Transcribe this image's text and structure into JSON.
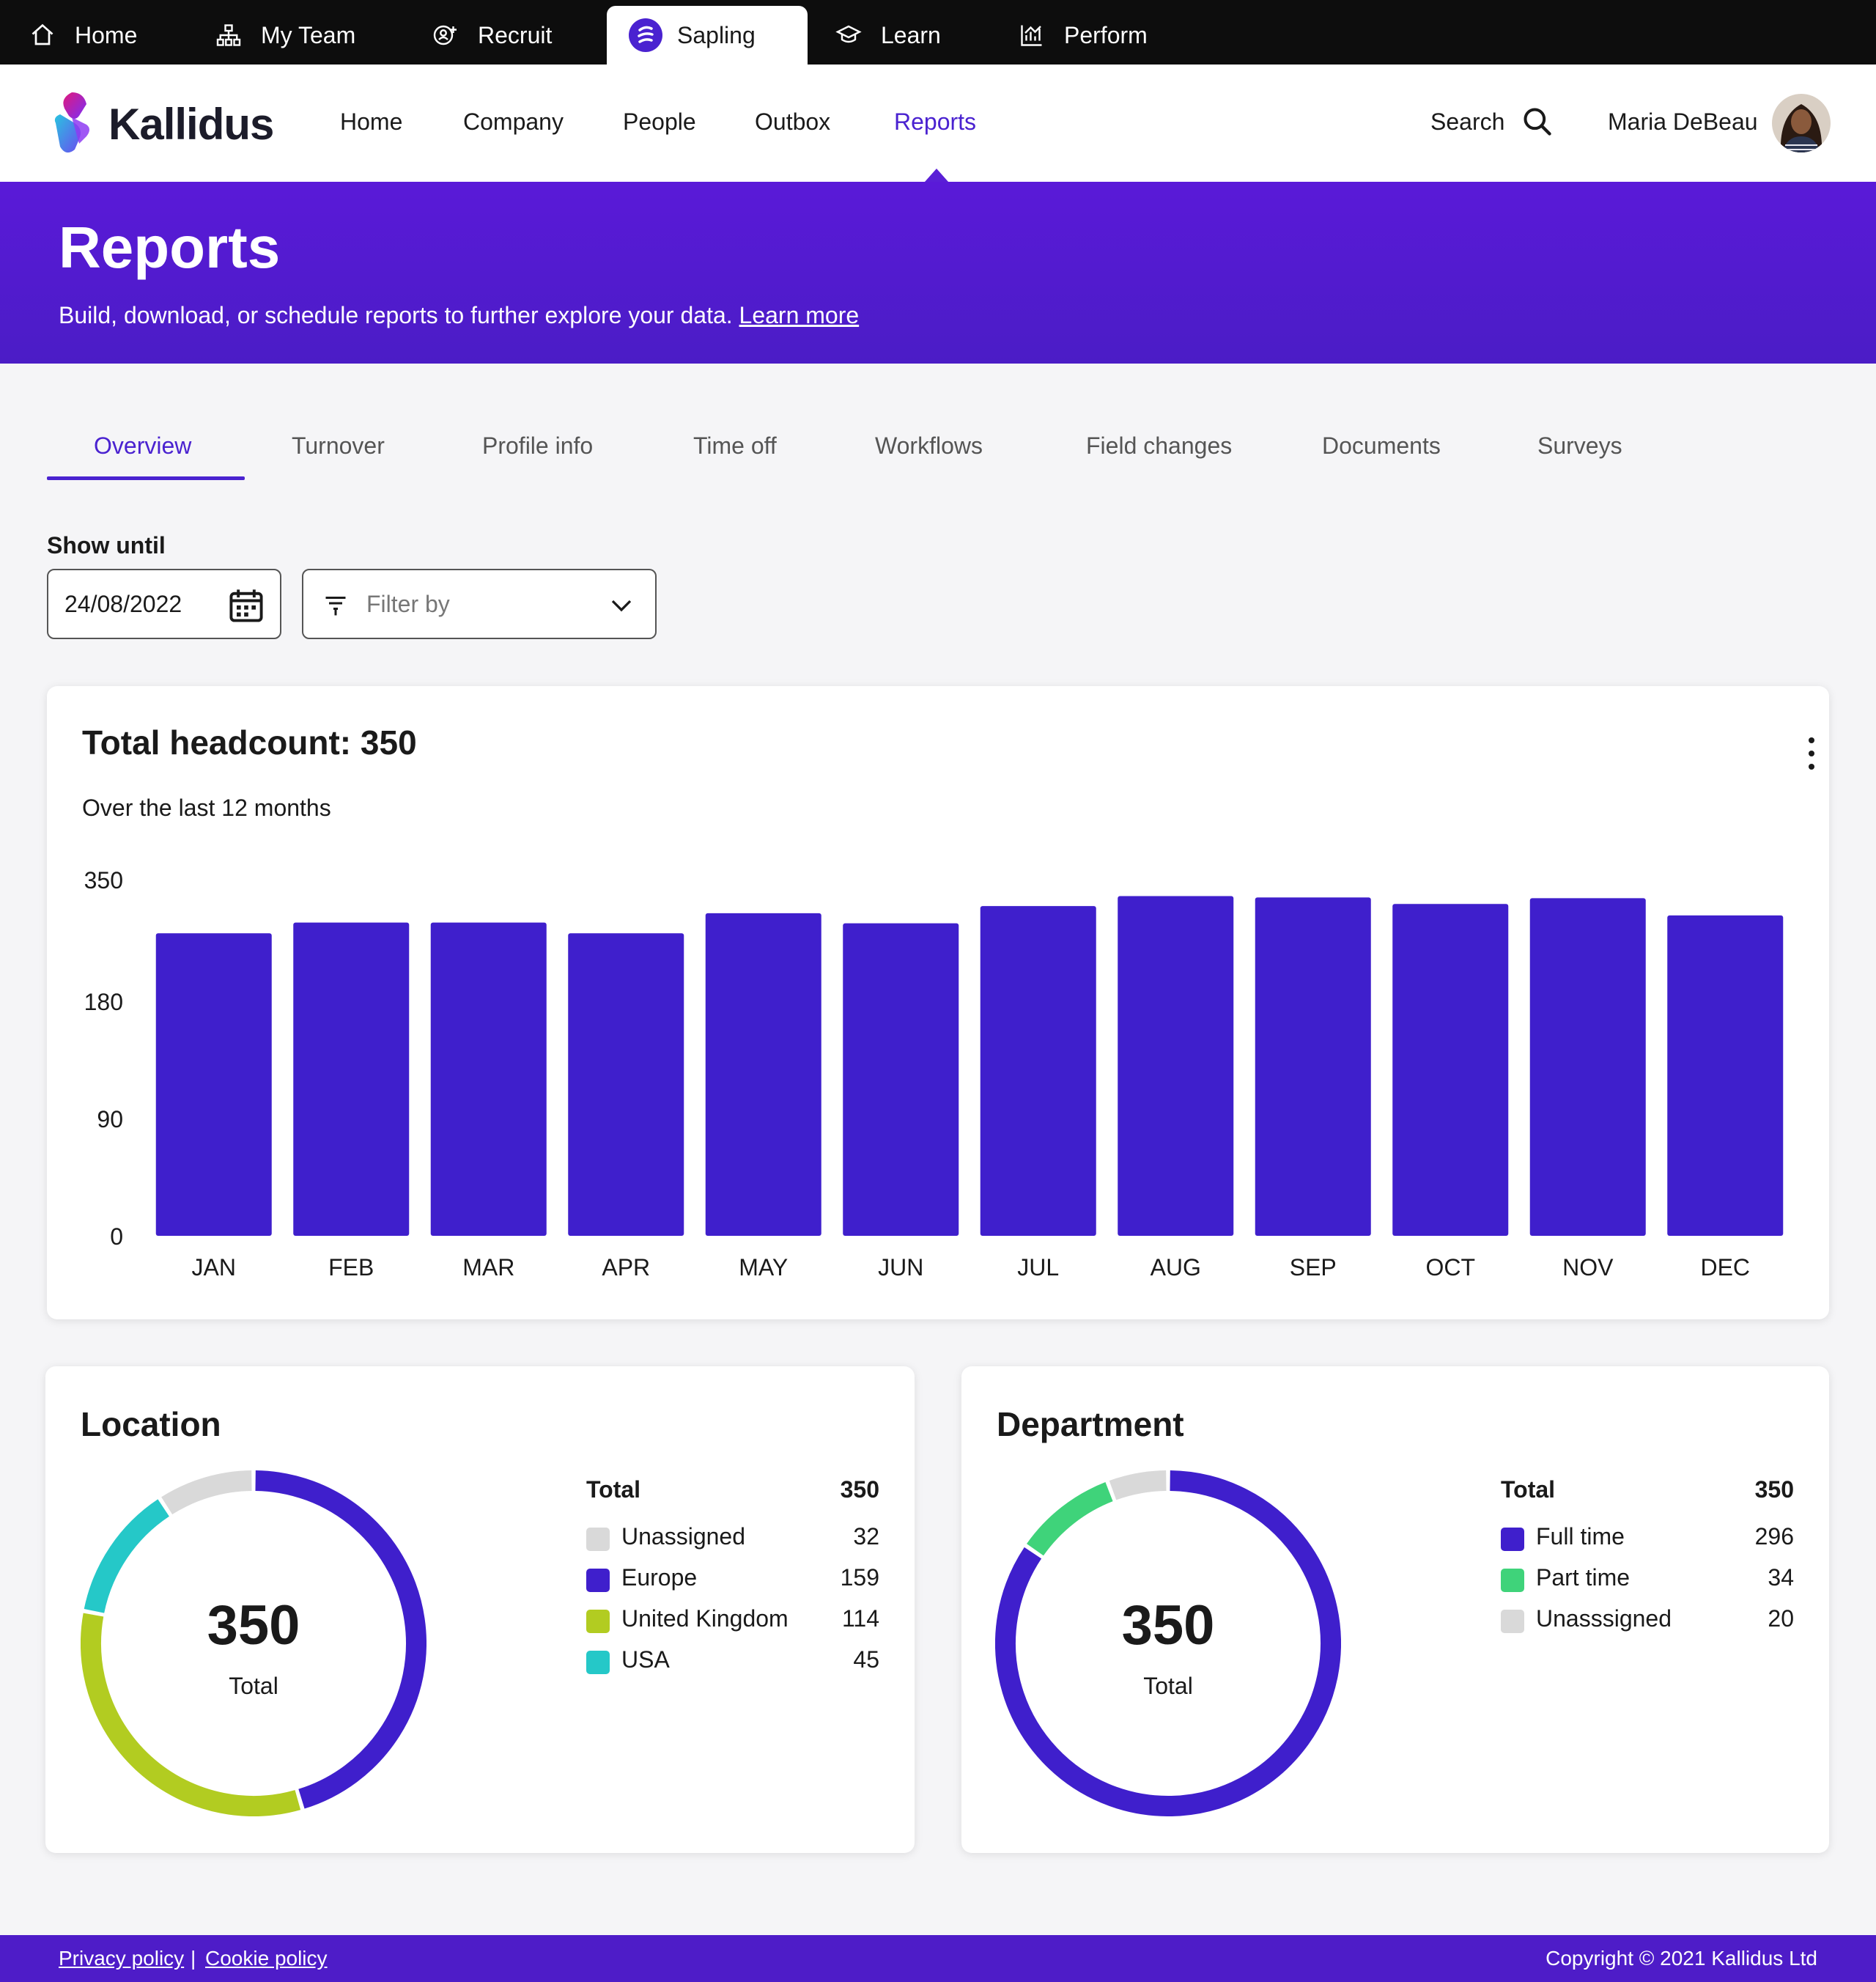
{
  "topbar": {
    "tabs": [
      {
        "label": "Home",
        "icon": "home-icon"
      },
      {
        "label": "My Team",
        "icon": "org-chart-icon"
      },
      {
        "label": "Recruit",
        "icon": "recruit-icon"
      },
      {
        "label": "Sapling",
        "icon": "sapling-logo",
        "active": true
      },
      {
        "label": "Learn",
        "icon": "graduation-cap-icon"
      },
      {
        "label": "Perform",
        "icon": "chart-icon"
      }
    ]
  },
  "header": {
    "logo_text": "Kallidus",
    "nav": [
      "Home",
      "Company",
      "People",
      "Outbox",
      "Reports"
    ],
    "active_nav": "Reports",
    "search_label": "Search",
    "user_name": "Maria DeBeau"
  },
  "banner": {
    "title": "Reports",
    "subtitle": "Build, download, or schedule reports to further explore your data.",
    "learn_more": "Learn more"
  },
  "tabs": [
    "Overview",
    "Turnover",
    "Profile info",
    "Time off",
    "Workflows",
    "Field changes",
    "Documents",
    "Surveys"
  ],
  "active_tab": "Overview",
  "controls": {
    "show_until_label": "Show until",
    "date_value": "24/08/2022",
    "filter_placeholder": "Filter by"
  },
  "headcount": {
    "title": "Total headcount: 350",
    "subtitle": "Over the last 12 months"
  },
  "chart_data": [
    {
      "type": "bar",
      "title": "Total headcount: 350",
      "subtitle": "Over the last 12 months",
      "categories": [
        "JAN",
        "FEB",
        "MAR",
        "APR",
        "MAY",
        "JUN",
        "JUL",
        "AUG",
        "SEP",
        "OCT",
        "NOV",
        "DEC"
      ],
      "values": [
        275,
        290,
        290,
        275,
        303,
        289,
        313,
        327,
        325,
        316,
        324,
        300
      ],
      "y_ticks": [
        0,
        90,
        180,
        350
      ],
      "ylim": [
        0,
        350
      ],
      "color": "#3f1fcc",
      "grid": false
    },
    {
      "type": "pie",
      "title": "Location",
      "total": 350,
      "total_label": "Total",
      "slices": [
        {
          "name": "Unassigned",
          "value": 32,
          "color": "#d9d9d9"
        },
        {
          "name": "Europe",
          "value": 159,
          "color": "#3f1fcc"
        },
        {
          "name": "United Kingdom",
          "value": 114,
          "color": "#b2cc21"
        },
        {
          "name": "USA",
          "value": 45,
          "color": "#25c8c8"
        }
      ]
    },
    {
      "type": "pie",
      "title": "Department",
      "total": 350,
      "total_label": "Total",
      "slices": [
        {
          "name": "Full time",
          "value": 296,
          "color": "#3f1fcc"
        },
        {
          "name": "Part time",
          "value": 34,
          "color": "#3fd37a"
        },
        {
          "name": "Unasssigned",
          "value": 20,
          "color": "#d9d9d9"
        }
      ]
    }
  ],
  "location": {
    "title": "Location",
    "total_header": "Total",
    "total_value": "350",
    "center_value": "350",
    "center_label": "Total",
    "rows": [
      {
        "name": "Unassigned",
        "value": "32",
        "color": "#d9d9d9"
      },
      {
        "name": "Europe",
        "value": "159",
        "color": "#3f1fcc"
      },
      {
        "name": "United Kingdom",
        "value": "114",
        "color": "#b2cc21"
      },
      {
        "name": "USA",
        "value": "45",
        "color": "#25c8c8"
      }
    ]
  },
  "department": {
    "title": "Department",
    "total_header": "Total",
    "total_value": "350",
    "center_value": "350",
    "center_label": "Total",
    "rows": [
      {
        "name": "Full time",
        "value": "296",
        "color": "#3f1fcc"
      },
      {
        "name": "Part time",
        "value": "34",
        "color": "#3fd37a"
      },
      {
        "name": "Unasssigned",
        "value": "20",
        "color": "#d9d9d9"
      }
    ]
  },
  "footer": {
    "privacy": "Privacy policy",
    "separator": "|",
    "cookie": "Cookie policy",
    "copyright": "Copyright © 2021 Kallidus Ltd"
  },
  "colors": {
    "accent": "#4a22d0",
    "banner": "#5a1ad8",
    "bar": "#3f1fcc",
    "topbar": "#0d0d0d"
  }
}
